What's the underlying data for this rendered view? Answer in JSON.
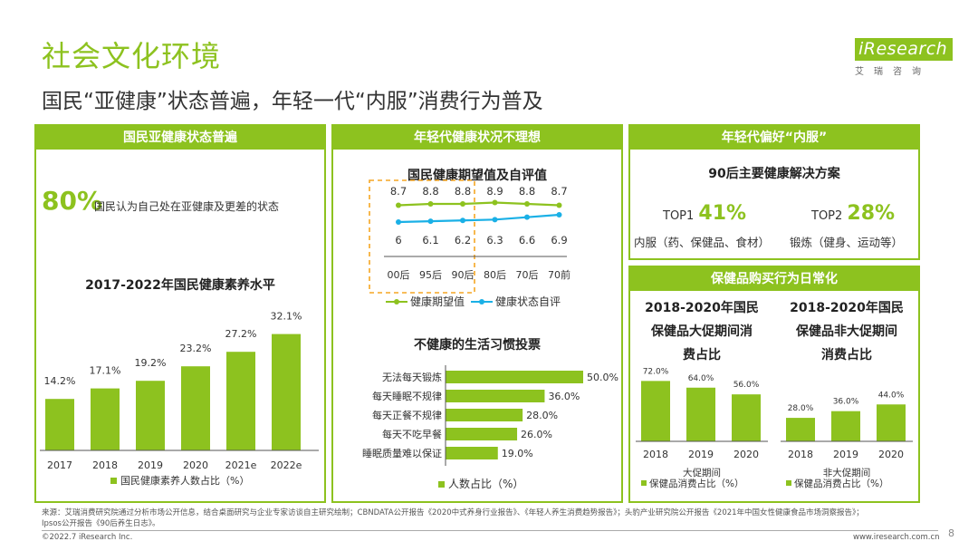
{
  "title": "社会文化环境",
  "subtitle": "国民“亚健康”状态普遍，年轻一代“内服”消费行为普及",
  "logo": {
    "brand": "iResearch",
    "cn": "艾瑞咨询"
  },
  "page_number": "8",
  "footer": {
    "source_line1": "来源：艾瑞消费研究院通过分析市场公开信息，结合桌面研究与企业专家访谈自主研究绘制；CBNDATA公开报告《2020中式养身行业报告》、《年轻人养生消费趋势报告》；头豹产业研究院公开报告《2021年中国女性健康食品市场洞察报告》；",
    "source_line2": "Ipsos公开报告《90后养生日志》。",
    "copyright": "©2022.7 iResearch Inc.",
    "website": "www.iresearch.com.cn"
  },
  "panel1": {
    "header": "国民亚健康状态普遍",
    "stat_value": "80%",
    "stat_text": "国民认为自己处在亚健康及更差的状态",
    "chart_title": "2017-2022年国民健康素养水平"
  },
  "panel2": {
    "header": "年轻代健康状况不理想",
    "chart1_title": "国民健康期望值及自评值",
    "chart2_title": "不健康的生活习惯投票"
  },
  "panel3": {
    "header": "年轻代偏好“内服”",
    "sub_title": "90后主要健康解决方案",
    "top1_label": "TOP1",
    "top1_value": "41%",
    "top1_desc": "内服（药、保健品、食材）",
    "top2_label": "TOP2",
    "top2_value": "28%",
    "top2_desc": "锻炼（健身、运动等）"
  },
  "panel4": {
    "header": "保健品购买行为日常化",
    "left_title_l1": "2018-2020年国民",
    "left_title_l2": "保健品大促期间消",
    "left_title_l3": "费占比",
    "right_title_l1": "2018-2020年国民",
    "right_title_l2": "保健品非大促期间",
    "right_title_l3": "消费占比"
  },
  "colors": {
    "accent": "#8dc21f",
    "blue": "#1ab0e6",
    "orange": "#f5a623"
  },
  "chart_data": [
    {
      "type": "bar",
      "title": "2017-2022年国民健康素养水平",
      "categories": [
        "2017",
        "2018",
        "2019",
        "2020",
        "2021e",
        "2022e"
      ],
      "values": [
        14.2,
        17.1,
        19.2,
        23.2,
        27.2,
        32.1
      ],
      "labels": [
        "14.2%",
        "17.1%",
        "19.2%",
        "23.2%",
        "27.2%",
        "32.1%"
      ],
      "legend": "国民健康素养人数占比（%）",
      "ylim": [
        0,
        35
      ]
    },
    {
      "type": "line",
      "title": "国民健康期望值及自评值",
      "categories": [
        "00后",
        "95后",
        "90后",
        "80后",
        "70后",
        "70前"
      ],
      "series": [
        {
          "name": "健康期望值",
          "values": [
            8.7,
            8.8,
            8.8,
            8.9,
            8.8,
            8.7
          ],
          "labels": [
            "8.7",
            "8.8",
            "8.8",
            "8.9",
            "8.8",
            "8.7"
          ]
        },
        {
          "name": "健康状态自评",
          "values": [
            6,
            6.1,
            6.2,
            6.3,
            6.6,
            6.9
          ],
          "labels": [
            "6",
            "6.1",
            "6.2",
            "6.3",
            "6.6",
            "6.9"
          ]
        }
      ],
      "highlight": [
        "00后",
        "95后",
        "90后"
      ]
    },
    {
      "type": "bar",
      "orientation": "horizontal",
      "title": "不健康的生活习惯投票",
      "categories": [
        "无法每天锻炼",
        "每天睡眠不规律",
        "每天正餐不规律",
        "每天不吃早餐",
        "睡眠质量难以保证"
      ],
      "values": [
        50.0,
        36.0,
        28.0,
        26.0,
        19.0
      ],
      "labels": [
        "50.0%",
        "36.0%",
        "28.0%",
        "26.0%",
        "19.0%"
      ],
      "legend": "人数占比（%）",
      "xlim": [
        0,
        50
      ]
    },
    {
      "type": "bar",
      "title": "2018-2020年国民保健品大促期间消费占比",
      "categories": [
        "2018",
        "2019",
        "2020"
      ],
      "values": [
        72.0,
        64.0,
        56.0
      ],
      "labels": [
        "72.0%",
        "64.0%",
        "56.0%"
      ],
      "xlabel": "大促期间",
      "legend": "保健品消费占比（%）",
      "ylim": [
        0,
        80
      ]
    },
    {
      "type": "bar",
      "title": "2018-2020年国民保健品非大促期间消费占比",
      "categories": [
        "2018",
        "2019",
        "2020"
      ],
      "values": [
        28.0,
        36.0,
        44.0
      ],
      "labels": [
        "28.0%",
        "36.0%",
        "44.0%"
      ],
      "xlabel": "非大促期间",
      "legend": "保健品消费占比（%）",
      "ylim": [
        0,
        80
      ]
    }
  ]
}
